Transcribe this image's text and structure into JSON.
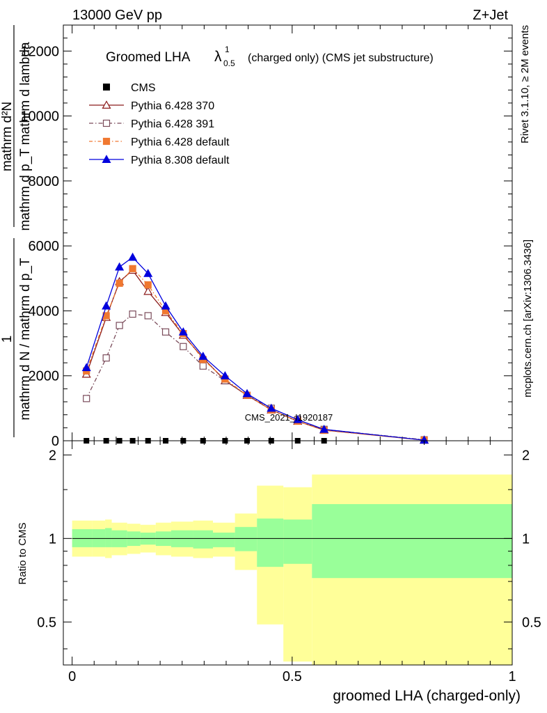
{
  "header": {
    "left": "13000 GeV pp",
    "right": "Z+Jet"
  },
  "side_labels": {
    "rivet": "Rivet 3.1.10, ≥ 2M events",
    "mcplots": "mcplots.cern.ch [arXiv:1306.3436]"
  },
  "chart_data": [
    {
      "type": "line",
      "title": "Groomed LHA",
      "title_symbol": "λ",
      "title_sup": "1",
      "title_sub": "0.5",
      "title_suffix": "(charged only) (CMS jet substructure)",
      "ylabel_numerator": "mathrm d²N",
      "ylabel_denominator": "mathrm d p_T mathrm d lambda",
      "ylabel_left": "1",
      "ylabel_left_denominator": "mathrm d N / mathrm d p_T",
      "ylim": [
        0,
        12800
      ],
      "xlim": [
        -0.02,
        1.0
      ],
      "yticks": [
        0,
        2000,
        4000,
        6000,
        8000,
        10000,
        12000
      ],
      "ytick_labels": [
        "0",
        "2000",
        "4000",
        "6000",
        "8000",
        "10000",
        "12000"
      ],
      "watermark": "CMS_2021_I1920187",
      "x": [
        0.0325,
        0.0775,
        0.1075,
        0.1375,
        0.1725,
        0.2125,
        0.2525,
        0.2975,
        0.3475,
        0.3975,
        0.4525,
        0.5125,
        0.5725,
        0.8
      ],
      "series": [
        {
          "name": "CMS",
          "color": "#000000",
          "style": "data",
          "values": [
            0,
            0,
            0,
            0,
            0,
            0,
            0,
            0,
            0,
            0,
            0,
            0,
            0,
            0
          ]
        },
        {
          "name": "Pythia 6.428 370",
          "color": "#8b1a1a",
          "marker": "open-triangle",
          "dash": "",
          "values": [
            2050,
            3800,
            4900,
            5250,
            4600,
            3950,
            3250,
            2550,
            1850,
            1400,
            950,
            600,
            330,
            20
          ]
        },
        {
          "name": "Pythia 6.428 391",
          "color": "#7a4b5a",
          "marker": "open-square",
          "dash": "6,3,1.5,3",
          "values": [
            1300,
            2550,
            3550,
            3900,
            3850,
            3350,
            2900,
            2300,
            1850,
            1400,
            1000,
            650,
            350,
            30
          ]
        },
        {
          "name": "Pythia 6.428 default",
          "color": "#f07830",
          "marker": "filled-square",
          "dash": "5,3,1.5,3",
          "values": [
            2150,
            3850,
            4850,
            5300,
            4800,
            4000,
            3300,
            2500,
            1900,
            1400,
            950,
            600,
            320,
            20
          ]
        },
        {
          "name": "Pythia 8.308 default",
          "color": "#0000dd",
          "marker": "filled-triangle",
          "dash": "",
          "values": [
            2250,
            4150,
            5350,
            5650,
            5150,
            4150,
            3350,
            2600,
            2000,
            1450,
            1000,
            650,
            350,
            20
          ]
        }
      ],
      "legend_position": "top-left"
    },
    {
      "type": "area",
      "ylabel": "Ratio to CMS",
      "xlabel": "groomed LHA (charged-only)",
      "ylim": [
        0.35,
        2.25
      ],
      "xlim": [
        -0.02,
        1.0
      ],
      "yticks": [
        0.5,
        1,
        2
      ],
      "ytick_labels": [
        "0.5",
        "1",
        "2"
      ],
      "xticks": [
        0,
        0.5,
        1
      ],
      "xtick_labels": [
        "0",
        "0.5",
        "1"
      ],
      "bins": [
        {
          "lo": 0.0,
          "hi": 0.045,
          "stat_lo": 0.93,
          "stat_hi": 1.08,
          "tot_lo": 0.86,
          "tot_hi": 1.16
        },
        {
          "lo": 0.045,
          "hi": 0.075,
          "stat_lo": 0.93,
          "stat_hi": 1.08,
          "tot_lo": 0.86,
          "tot_hi": 1.16
        },
        {
          "lo": 0.075,
          "hi": 0.09,
          "stat_lo": 0.93,
          "stat_hi": 1.09,
          "tot_lo": 0.85,
          "tot_hi": 1.17
        },
        {
          "lo": 0.09,
          "hi": 0.125,
          "stat_lo": 0.93,
          "stat_hi": 1.07,
          "tot_lo": 0.87,
          "tot_hi": 1.14
        },
        {
          "lo": 0.125,
          "hi": 0.155,
          "stat_lo": 0.94,
          "stat_hi": 1.06,
          "tot_lo": 0.88,
          "tot_hi": 1.13
        },
        {
          "lo": 0.155,
          "hi": 0.19,
          "stat_lo": 0.95,
          "stat_hi": 1.05,
          "tot_lo": 0.89,
          "tot_hi": 1.12
        },
        {
          "lo": 0.19,
          "hi": 0.225,
          "stat_lo": 0.94,
          "stat_hi": 1.06,
          "tot_lo": 0.87,
          "tot_hi": 1.14
        },
        {
          "lo": 0.225,
          "hi": 0.275,
          "stat_lo": 0.93,
          "stat_hi": 1.07,
          "tot_lo": 0.86,
          "tot_hi": 1.15
        },
        {
          "lo": 0.275,
          "hi": 0.32,
          "stat_lo": 0.92,
          "stat_hi": 1.07,
          "tot_lo": 0.85,
          "tot_hi": 1.16
        },
        {
          "lo": 0.32,
          "hi": 0.37,
          "stat_lo": 0.93,
          "stat_hi": 1.05,
          "tot_lo": 0.86,
          "tot_hi": 1.14
        },
        {
          "lo": 0.37,
          "hi": 0.42,
          "stat_lo": 0.9,
          "stat_hi": 1.1,
          "tot_lo": 0.77,
          "tot_hi": 1.23
        },
        {
          "lo": 0.42,
          "hi": 0.48,
          "stat_lo": 0.79,
          "stat_hi": 1.18,
          "tot_lo": 0.49,
          "tot_hi": 1.55
        },
        {
          "lo": 0.48,
          "hi": 0.545,
          "stat_lo": 0.81,
          "stat_hi": 1.17,
          "tot_lo": 0.36,
          "tot_hi": 1.53
        },
        {
          "lo": 0.545,
          "hi": 1.0,
          "stat_lo": 0.72,
          "stat_hi": 1.33,
          "tot_lo": 0.35,
          "tot_hi": 1.7
        }
      ],
      "colors": {
        "stat": "#99ff99",
        "total": "#ffff99"
      }
    }
  ]
}
